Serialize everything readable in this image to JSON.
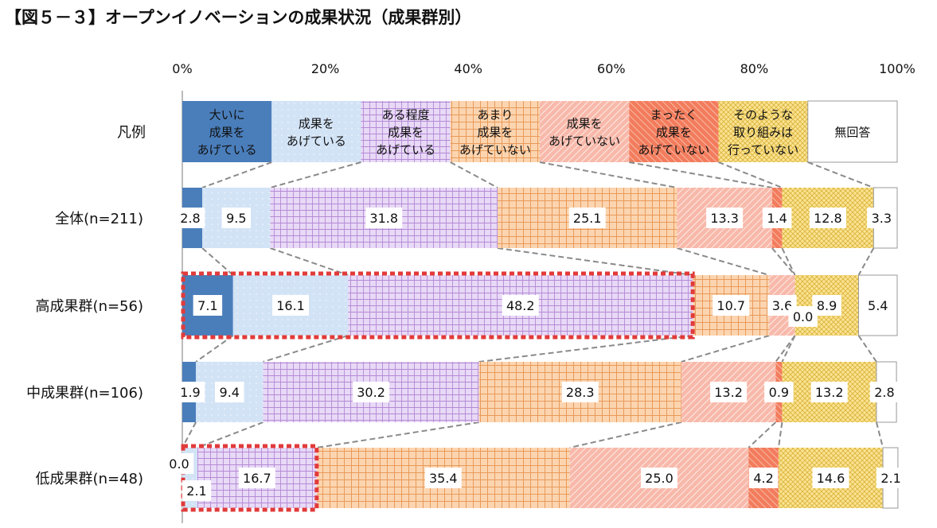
{
  "title": "【図５－３】オープンイノベーションの成果状況（成果群別）",
  "chart_data": {
    "type": "bar",
    "orientation": "horizontal",
    "stacked": true,
    "percent_stacked": true,
    "title": "【図５－３】オープンイノベーションの成果状況（成果群別）",
    "xlim": [
      0,
      100
    ],
    "x_ticks": [
      "0%",
      "20%",
      "40%",
      "60%",
      "80%",
      "100%"
    ],
    "legend_row_label": "凡例",
    "categories": [
      "全体(n=211)",
      "高成果群(n=56)",
      "中成果群(n=106)",
      "低成果群(n=48)"
    ],
    "series": [
      {
        "name": "大いに\n成果を\nあげている",
        "color": "#4a7ebb",
        "values": [
          2.8,
          7.1,
          1.9,
          0.0
        ]
      },
      {
        "name": "成果を\nあげている",
        "color": "#d2e3f6",
        "values": [
          9.5,
          16.1,
          9.4,
          2.1
        ]
      },
      {
        "name": "ある程度\n成果を\nあげている",
        "color": "#e5d5f3",
        "values": [
          31.8,
          48.2,
          30.2,
          16.7
        ]
      },
      {
        "name": "あまり\n成果を\nあげていない",
        "color": "#fcd3ad",
        "values": [
          25.1,
          10.7,
          28.3,
          35.4
        ]
      },
      {
        "name": "成果を\nあげていない",
        "color": "#f7b3a4",
        "values": [
          13.3,
          3.6,
          13.2,
          25.0
        ]
      },
      {
        "name": "まったく\n成果を\nあげていない",
        "color": "#f27c5c",
        "values": [
          1.4,
          0.0,
          0.9,
          4.2
        ]
      },
      {
        "name": "そのような\n取り組みは\n行っていない",
        "color": "#fbe392",
        "values": [
          12.8,
          8.9,
          13.2,
          14.6
        ]
      },
      {
        "name": "無回答",
        "color": "#ffffff",
        "values": [
          3.3,
          5.4,
          2.8,
          2.1
        ]
      }
    ],
    "highlighted_rows": [
      "高成果群(n=56)",
      "低成果群(n=48)"
    ],
    "highlight_color": "#e23a3a",
    "grid": false,
    "legend": "top"
  }
}
